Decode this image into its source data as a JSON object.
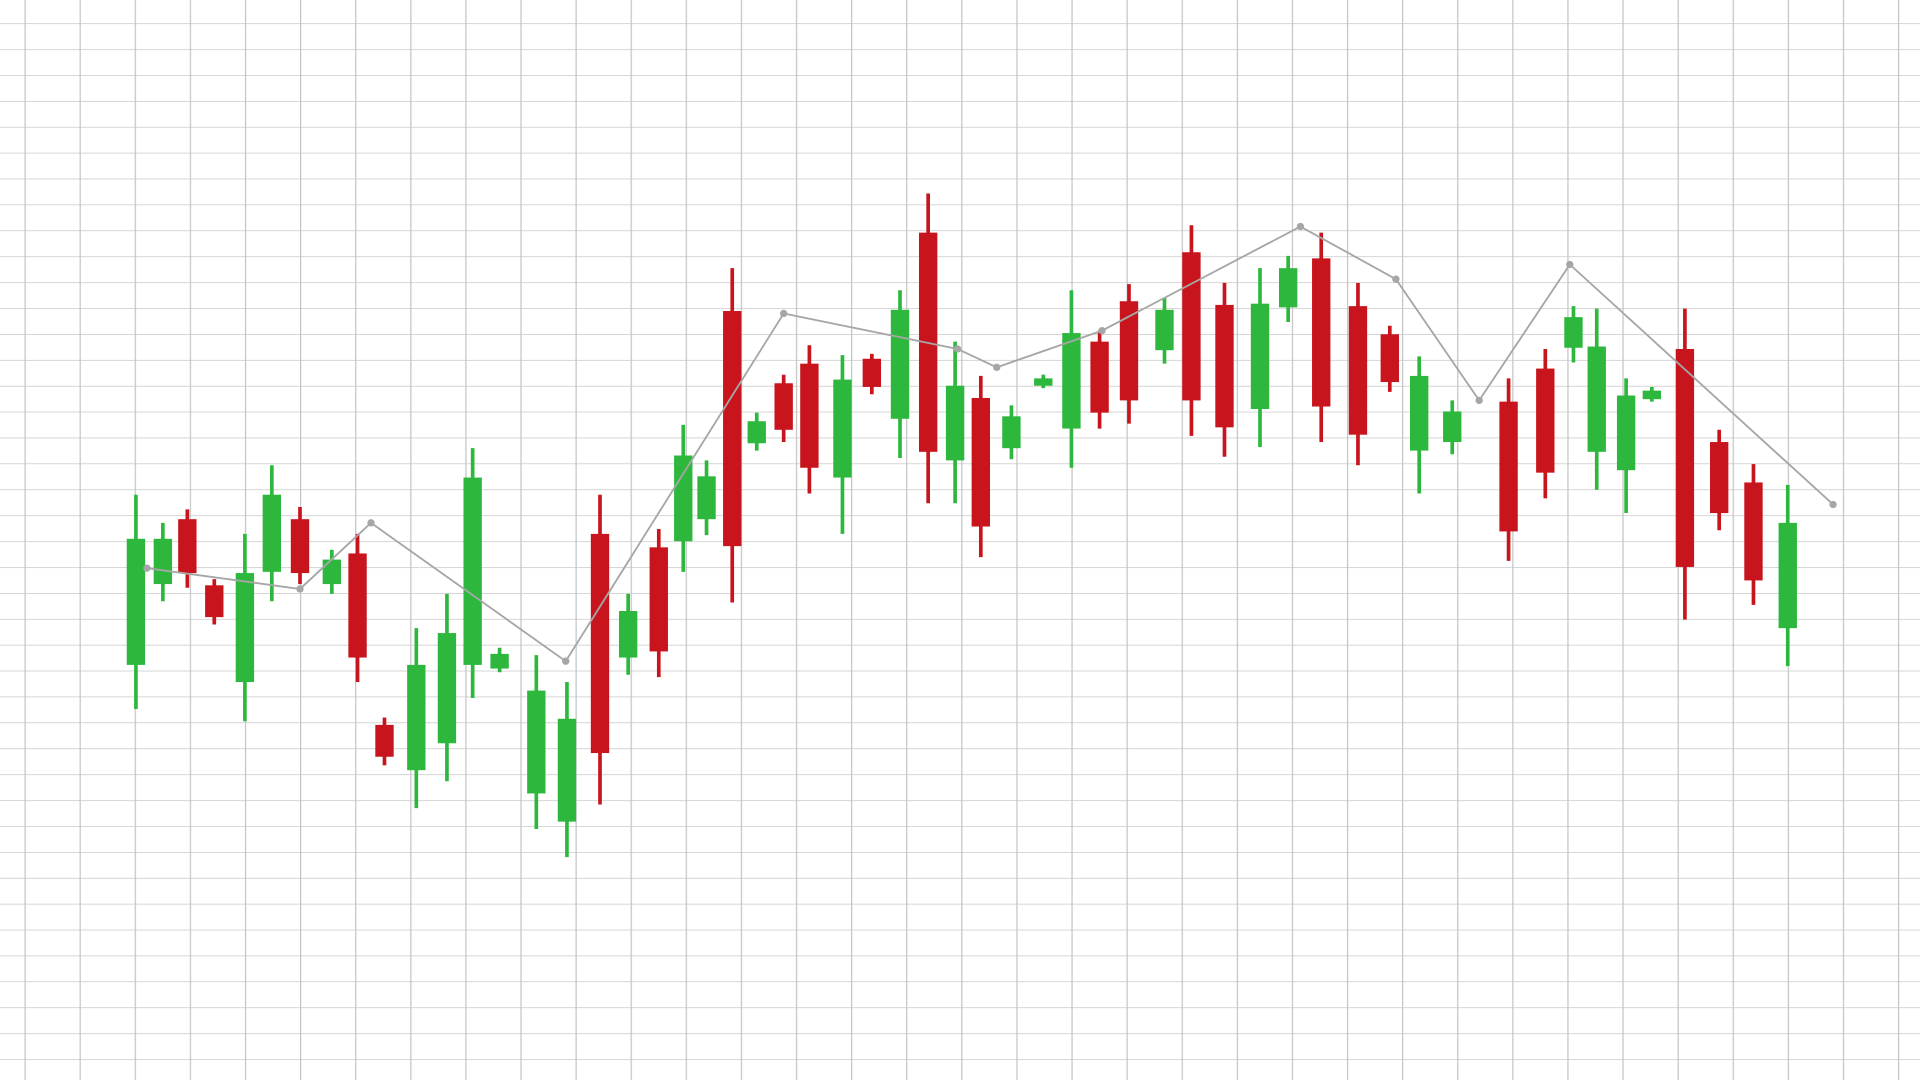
{
  "chart_data": {
    "type": "candlestick",
    "grid": true,
    "up_color": "#2db83d",
    "down_color": "#c8141c",
    "xlim": [
      0,
      1568
    ],
    "ylim": [
      0,
      882
    ],
    "x": [
      111,
      133,
      153,
      175,
      200,
      222,
      245,
      271,
      292,
      314,
      340,
      365,
      386,
      408,
      438,
      463,
      490,
      513,
      538,
      558,
      577,
      598,
      618,
      640,
      661,
      688,
      712,
      735,
      758,
      780,
      801,
      826,
      852,
      875,
      898,
      922,
      951,
      973,
      1000,
      1029,
      1052,
      1079,
      1109,
      1135,
      1159,
      1186,
      1232,
      1262,
      1285,
      1304,
      1328,
      1349,
      1376,
      1404,
      1432,
      1460
    ],
    "open": [
      339,
      405,
      458,
      404,
      325,
      415,
      458,
      405,
      430,
      290,
      253,
      275,
      339,
      336,
      234,
      211,
      446,
      345,
      435,
      440,
      458,
      628,
      520,
      569,
      585,
      492,
      589,
      540,
      692,
      506,
      557,
      516,
      567,
      532,
      603,
      636,
      596,
      676,
      633,
      548,
      631,
      671,
      632,
      609,
      514,
      521,
      554,
      581,
      598,
      513,
      498,
      556,
      597,
      521,
      488,
      369
    ],
    "high": [
      478,
      455,
      466,
      409,
      446,
      502,
      468,
      433,
      446,
      296,
      369,
      397,
      516,
      353,
      347,
      325,
      478,
      397,
      450,
      535,
      506,
      663,
      545,
      576,
      600,
      592,
      593,
      645,
      724,
      603,
      575,
      551,
      576,
      645,
      612,
      650,
      639,
      698,
      651,
      663,
      673,
      692,
      651,
      616,
      591,
      555,
      573,
      597,
      632,
      630,
      573,
      566,
      630,
      531,
      503,
      486
    ],
    "low": [
      303,
      391,
      402,
      372,
      293,
      391,
      405,
      397,
      325,
      257,
      222,
      244,
      312,
      333,
      205,
      182,
      225,
      331,
      329,
      415,
      445,
      390,
      514,
      521,
      479,
      446,
      560,
      508,
      471,
      471,
      427,
      507,
      565,
      500,
      532,
      536,
      585,
      526,
      509,
      517,
      619,
      521,
      502,
      562,
      479,
      511,
      424,
      475,
      586,
      482,
      463,
      554,
      376,
      449,
      388,
      338
    ],
    "close": [
      442,
      442,
      414,
      378,
      414,
      478,
      414,
      425,
      345,
      264,
      339,
      365,
      492,
      348,
      318,
      295,
      267,
      383,
      350,
      510,
      493,
      436,
      538,
      531,
      500,
      572,
      566,
      629,
      513,
      567,
      452,
      542,
      573,
      610,
      545,
      555,
      629,
      555,
      533,
      634,
      663,
      550,
      527,
      570,
      575,
      546,
      448,
      496,
      623,
      599,
      559,
      563,
      419,
      463,
      408,
      455
    ],
    "overlay": {
      "type": "line",
      "color": "#a6a6a6",
      "x": [
        120,
        245,
        303,
        462,
        640,
        782,
        814,
        900,
        1062,
        1140,
        1208,
        1282,
        1497
      ],
      "values": [
        418,
        401,
        455,
        342,
        626,
        597,
        582,
        612,
        697,
        654,
        555,
        666,
        470
      ]
    }
  }
}
